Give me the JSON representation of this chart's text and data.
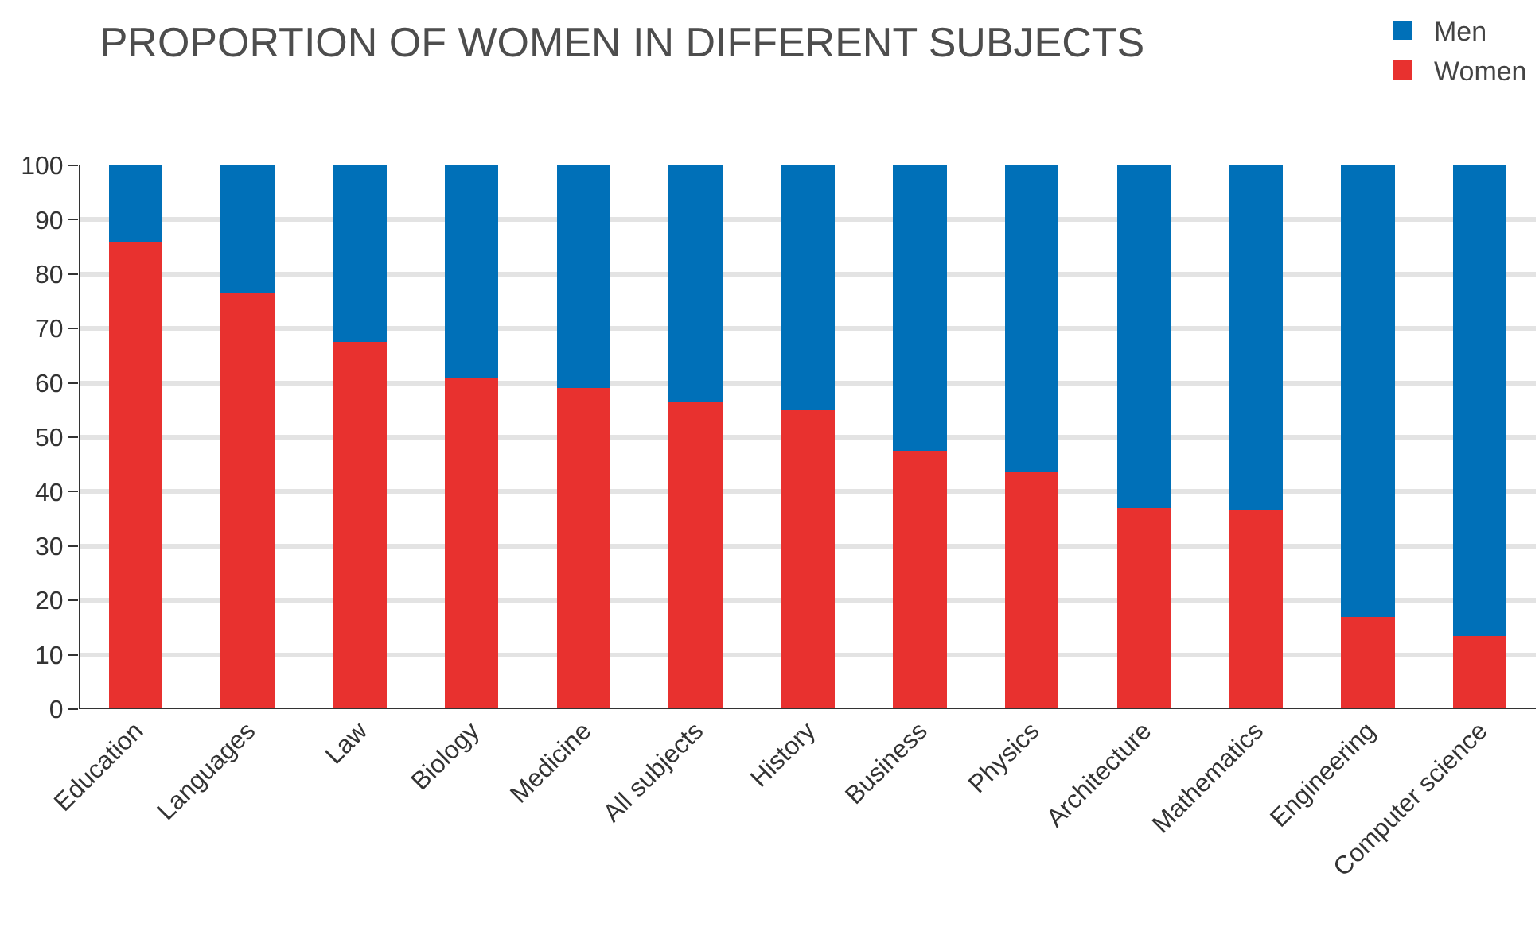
{
  "chart_data": {
    "type": "bar",
    "title": "PROPORTION OF WOMEN IN DIFFERENT SUBJECTS",
    "stacked": true,
    "categories": [
      "Education",
      "Languages",
      "Law",
      "Biology",
      "Medicine",
      "All subjects",
      "History",
      "Business",
      "Physics",
      "Architecture",
      "Mathematics",
      "Engineering",
      "Computer science"
    ],
    "series": [
      {
        "name": "Women",
        "color": "#e8312f",
        "values": [
          86,
          76.5,
          67.5,
          61,
          59,
          56.5,
          55,
          47.5,
          43.5,
          37,
          36.5,
          17,
          13.5
        ]
      },
      {
        "name": "Men",
        "color": "#0070b8",
        "values": [
          14,
          23.5,
          32.5,
          39,
          41,
          43.5,
          45,
          52.5,
          56.5,
          63,
          63.5,
          83,
          86.5
        ]
      }
    ],
    "ylim": [
      0,
      100
    ],
    "yticks": [
      0,
      10,
      20,
      30,
      40,
      50,
      60,
      70,
      80,
      90,
      100
    ],
    "grid": "y",
    "legend": "top right"
  }
}
